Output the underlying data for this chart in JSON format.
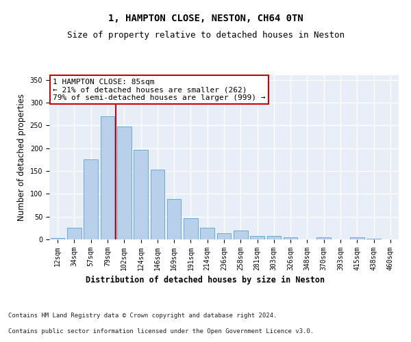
{
  "title_line1": "1, HAMPTON CLOSE, NESTON, CH64 0TN",
  "title_line2": "Size of property relative to detached houses in Neston",
  "xlabel": "Distribution of detached houses by size in Neston",
  "ylabel": "Number of detached properties",
  "categories": [
    "12sqm",
    "34sqm",
    "57sqm",
    "79sqm",
    "102sqm",
    "124sqm",
    "146sqm",
    "169sqm",
    "191sqm",
    "214sqm",
    "236sqm",
    "258sqm",
    "281sqm",
    "303sqm",
    "326sqm",
    "348sqm",
    "370sqm",
    "393sqm",
    "415sqm",
    "438sqm",
    "460sqm"
  ],
  "values": [
    3,
    25,
    175,
    270,
    248,
    197,
    153,
    88,
    47,
    25,
    13,
    20,
    7,
    7,
    5,
    0,
    5,
    0,
    5,
    1,
    0
  ],
  "bar_color": "#b8d0ea",
  "bar_edge_color": "#6aaad4",
  "bg_color": "#e8eef8",
  "grid_color": "#ffffff",
  "annotation_text": "1 HAMPTON CLOSE: 85sqm\n← 21% of detached houses are smaller (262)\n79% of semi-detached houses are larger (999) →",
  "annotation_box_edge": "#cc0000",
  "vline_color": "#cc0000",
  "ylim": [
    0,
    360
  ],
  "yticks": [
    0,
    50,
    100,
    150,
    200,
    250,
    300,
    350
  ],
  "footer_line1": "Contains HM Land Registry data © Crown copyright and database right 2024.",
  "footer_line2": "Contains public sector information licensed under the Open Government Licence v3.0.",
  "title_fontsize": 10,
  "subtitle_fontsize": 9,
  "axis_label_fontsize": 8.5,
  "tick_fontsize": 7,
  "annotation_fontsize": 8,
  "footer_fontsize": 6.5
}
